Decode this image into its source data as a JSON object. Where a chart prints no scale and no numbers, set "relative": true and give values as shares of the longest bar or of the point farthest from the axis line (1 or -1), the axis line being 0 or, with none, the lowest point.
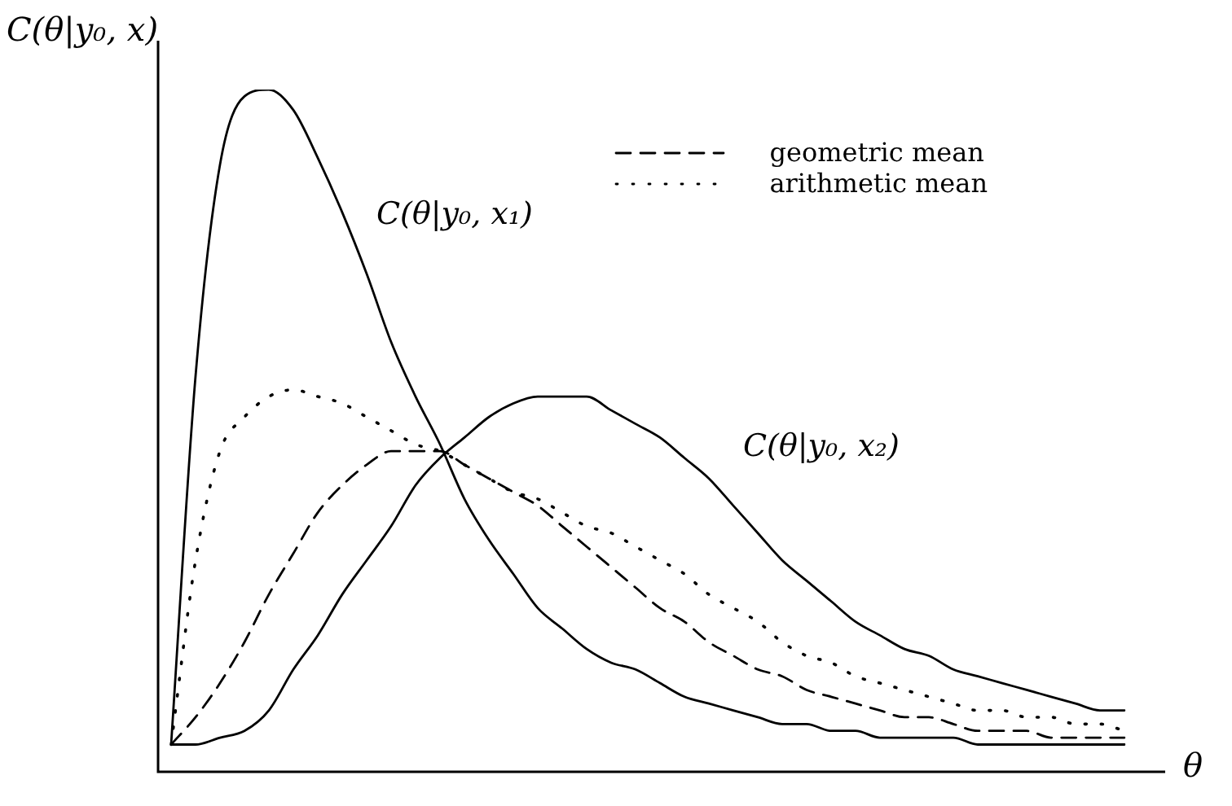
{
  "chart_data": {
    "type": "line",
    "relative": true,
    "xlabel": "θ",
    "ylabel": "C(θ|y₀, x)",
    "legend": "top right",
    "marker": "none",
    "categories": [
      null,
      null,
      null,
      null,
      null,
      null,
      null,
      null,
      null,
      null,
      null,
      null,
      null,
      null,
      null,
      null,
      null,
      null,
      null,
      null,
      null,
      null,
      null,
      null,
      null,
      null,
      null,
      null,
      null,
      null,
      null,
      null,
      null,
      null,
      null,
      null,
      null,
      null,
      null,
      null
    ],
    "series": [
      {
        "name": "C(θ|y₀, x₁)",
        "color": "#000000",
        "line_style": "solid",
        "values": [
          0.04,
          0.58,
          0.89,
          0.99,
          1,
          0.97,
          0.9,
          0.82,
          0.73,
          0.63,
          0.55,
          0.48,
          0.4,
          0.34,
          0.29,
          0.24,
          0.21,
          0.18,
          0.16,
          0.15,
          0.13,
          0.11,
          0.1,
          0.09,
          0.08,
          0.07,
          0.07,
          0.06,
          0.06,
          0.05,
          0.05,
          0.05,
          0.05,
          0.04,
          0.04,
          0.04,
          0.04,
          0.04,
          0.04,
          0.04
        ]
      },
      {
        "name": "C(θ|y₀, x₂)",
        "color": "#000000",
        "line_style": "solid",
        "values": [
          0.04,
          0.04,
          0.05,
          0.06,
          0.09,
          0.15,
          0.2,
          0.26,
          0.31,
          0.36,
          0.42,
          0.46,
          0.49,
          0.52,
          0.54,
          0.55,
          0.55,
          0.55,
          0.53,
          0.51,
          0.49,
          0.46,
          0.43,
          0.39,
          0.35,
          0.31,
          0.28,
          0.25,
          0.22,
          0.2,
          0.18,
          0.17,
          0.15,
          0.14,
          0.13,
          0.12,
          0.11,
          0.1,
          0.09,
          0.09
        ]
      },
      {
        "name": "geometric mean",
        "color": "#000000",
        "line_style": "dashed",
        "values": [
          0.04,
          0.08,
          0.13,
          0.19,
          0.26,
          0.32,
          0.38,
          0.42,
          0.45,
          0.47,
          0.47,
          0.47,
          0.45,
          0.43,
          0.41,
          0.39,
          0.36,
          0.33,
          0.3,
          0.27,
          0.24,
          0.22,
          0.19,
          0.17,
          0.15,
          0.14,
          0.12,
          0.11,
          0.1,
          0.09,
          0.08,
          0.08,
          0.07,
          0.06,
          0.06,
          0.06,
          0.05,
          0.05,
          0.05,
          0.05
        ]
      },
      {
        "name": "arithmetic mean",
        "color": "#000000",
        "line_style": "dotted",
        "values": [
          0.04,
          0.31,
          0.47,
          0.52,
          0.55,
          0.56,
          0.55,
          0.54,
          0.52,
          0.5,
          0.48,
          0.47,
          0.45,
          0.43,
          0.41,
          0.4,
          0.38,
          0.36,
          0.35,
          0.33,
          0.31,
          0.29,
          0.26,
          0.24,
          0.22,
          0.19,
          0.17,
          0.16,
          0.14,
          0.13,
          0.12,
          0.11,
          0.1,
          0.09,
          0.09,
          0.08,
          0.08,
          0.07,
          0.07,
          0.06
        ]
      }
    ]
  }
}
